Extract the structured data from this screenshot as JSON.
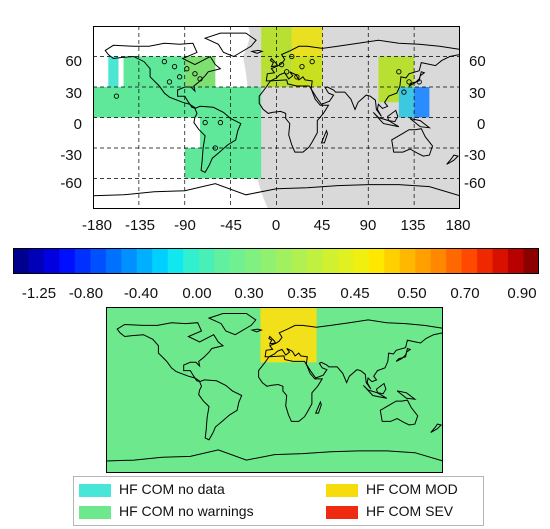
{
  "colors": {
    "night_shade": "#d9d9d9",
    "cell_cyan": "#4de6d2",
    "cell_green1": "#5fe89a",
    "cell_green2": "#7ee070",
    "cell_lime": "#b8e032",
    "cell_yellowgreen": "#c8e01e",
    "cell_yellow": "#e8e020",
    "cell_blue": "#2a8cff",
    "cell_teal": "#3cc8e0",
    "bottom_bg": "#6ee88c",
    "bottom_mod": "#f2e01a",
    "legend_nodata": "#48e6d8",
    "legend_nowarn": "#6ee88c",
    "legend_mod": "#f5dc0a",
    "legend_sev": "#ee2a10"
  },
  "top_map": {
    "lon_ticks": [
      "-180",
      "-135",
      "-90",
      "-45",
      "0",
      "45",
      "90",
      "135",
      "180"
    ],
    "lat_ticks_left": [
      "60",
      "30",
      "0",
      "-30",
      "-60"
    ],
    "lat_ticks_right": [
      "60",
      "30",
      "0",
      "-30",
      "-60"
    ]
  },
  "colorbar": {
    "tick_labels": [
      "-1.25",
      "-0.80",
      "-0.40",
      "0.00",
      "0.30",
      "0.35",
      "0.45",
      "0.50",
      "0.70",
      "0.90"
    ],
    "colors": [
      "#00008f",
      "#0000b8",
      "#0000e0",
      "#0010ff",
      "#0030ff",
      "#0050ff",
      "#0070ff",
      "#0090ff",
      "#00b0ff",
      "#00d0ff",
      "#10e8f0",
      "#30f0d0",
      "#48f0b8",
      "#60f0a0",
      "#70f090",
      "#80f080",
      "#90f070",
      "#a0f060",
      "#b0f050",
      "#c0f040",
      "#d0f030",
      "#e0f020",
      "#f0f010",
      "#ffe800",
      "#ffd000",
      "#ffb800",
      "#ffa000",
      "#ff8800",
      "#ff6800",
      "#ff4800",
      "#f02800",
      "#d81000",
      "#b80000",
      "#8c0000"
    ]
  },
  "legend": {
    "items": [
      {
        "label": "HF COM no data"
      },
      {
        "label": "HF COM no warnings"
      },
      {
        "label": "HF COM MOD"
      },
      {
        "label": "HF COM SEV"
      }
    ]
  }
}
